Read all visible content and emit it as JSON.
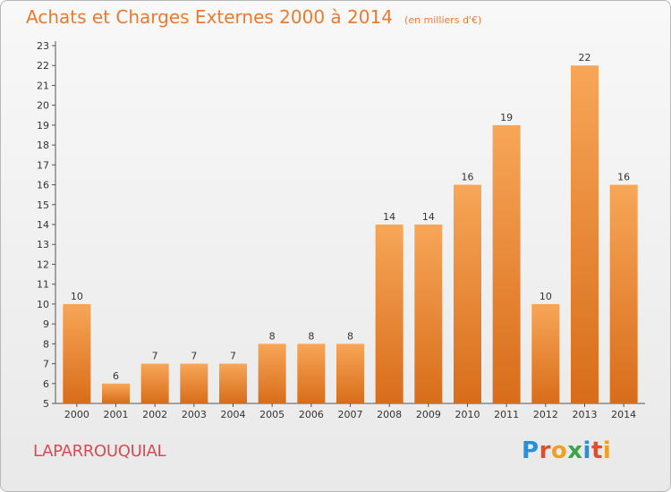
{
  "chart_data": {
    "type": "bar",
    "title": "Achats et Charges Externes 2000 à 2014",
    "subtitle": "(en milliers d'€)",
    "categories": [
      "2000",
      "2001",
      "2002",
      "2003",
      "2004",
      "2005",
      "2006",
      "2007",
      "2008",
      "2009",
      "2010",
      "2011",
      "2012",
      "2013",
      "2014"
    ],
    "values": [
      10,
      6,
      7,
      7,
      7,
      8,
      8,
      8,
      14,
      14,
      16,
      19,
      10,
      22,
      16
    ],
    "ylim": [
      5,
      23
    ],
    "yticks": [
      5,
      6,
      7,
      8,
      9,
      10,
      11,
      12,
      13,
      14,
      15,
      16,
      17,
      18,
      19,
      20,
      21,
      22,
      23
    ],
    "grid": false,
    "bar_color": "#f08a34"
  },
  "footer": {
    "commune": "LAPARROUQUIAL",
    "logo_letters": [
      {
        "ch": "P",
        "color": "#2a8fd6"
      },
      {
        "ch": "r",
        "color": "#e04e2b"
      },
      {
        "ch": "o",
        "color": "#f0a020"
      },
      {
        "ch": "x",
        "color": "#3aa648"
      },
      {
        "ch": "i",
        "color": "#2a8fd6"
      },
      {
        "ch": "t",
        "color": "#e04e2b"
      },
      {
        "ch": "i",
        "color": "#f0a020"
      }
    ]
  }
}
